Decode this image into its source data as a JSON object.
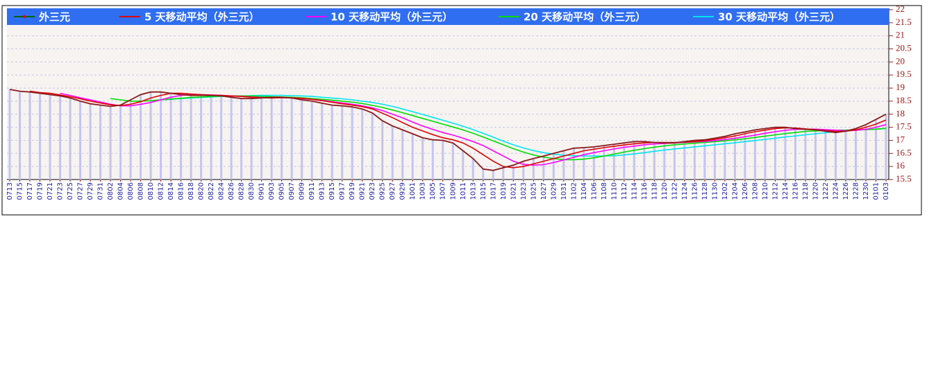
{
  "chart_data": {
    "type": "line",
    "categories": [
      "0713",
      "0715",
      "0717",
      "0719",
      "0721",
      "0723",
      "0725",
      "0727",
      "0729",
      "0731",
      "0802",
      "0804",
      "0806",
      "0808",
      "0810",
      "0812",
      "0814",
      "0816",
      "0818",
      "0820",
      "0822",
      "0824",
      "0826",
      "0828",
      "0830",
      "0901",
      "0903",
      "0905",
      "0907",
      "0909",
      "0911",
      "0913",
      "0915",
      "0917",
      "0919",
      "0921",
      "0923",
      "0925",
      "0927",
      "0929",
      "1001",
      "1003",
      "1005",
      "1007",
      "1009",
      "1011",
      "1013",
      "1015",
      "1017",
      "1019",
      "1021",
      "1023",
      "1025",
      "1027",
      "1029",
      "1031",
      "1102",
      "1104",
      "1106",
      "1108",
      "1110",
      "1112",
      "1114",
      "1116",
      "1118",
      "1120",
      "1122",
      "1124",
      "1126",
      "1128",
      "1130",
      "1202",
      "1204",
      "1206",
      "1208",
      "1210",
      "1212",
      "1214",
      "1216",
      "1218",
      "1220",
      "1222",
      "1224",
      "1226",
      "1228",
      "1230",
      "0101",
      "0103"
    ],
    "series": [
      {
        "name": "外三元",
        "color": "#8b1a1a",
        "values": [
          18.95,
          18.88,
          18.85,
          18.8,
          18.75,
          18.7,
          18.62,
          18.5,
          18.4,
          18.35,
          18.3,
          18.35,
          18.55,
          18.75,
          18.85,
          18.85,
          18.8,
          18.75,
          18.72,
          18.72,
          18.72,
          18.7,
          18.65,
          18.6,
          18.6,
          18.62,
          18.65,
          18.65,
          18.62,
          18.55,
          18.5,
          18.42,
          18.35,
          18.32,
          18.28,
          18.2,
          18.05,
          17.75,
          17.55,
          17.4,
          17.25,
          17.1,
          17.02,
          17.0,
          16.9,
          16.6,
          16.3,
          15.9,
          15.85,
          15.95,
          16.05,
          16.2,
          16.3,
          16.4,
          16.5,
          16.6,
          16.7,
          16.72,
          16.75,
          16.8,
          16.85,
          16.9,
          16.95,
          16.95,
          16.92,
          16.9,
          16.9,
          16.95,
          17.0,
          17.02,
          17.08,
          17.15,
          17.25,
          17.32,
          17.4,
          17.45,
          17.5,
          17.5,
          17.45,
          17.42,
          17.4,
          17.35,
          17.3,
          17.35,
          17.45,
          17.6,
          17.8,
          18.0
        ]
      },
      {
        "name": "5 天移动平均（外三元）",
        "color": "#e00000",
        "values": [
          null,
          null,
          18.88,
          18.83,
          18.8,
          18.74,
          18.67,
          18.59,
          18.5,
          18.43,
          18.36,
          18.33,
          18.38,
          18.48,
          18.62,
          18.72,
          18.8,
          18.8,
          18.77,
          18.75,
          18.73,
          18.72,
          18.7,
          18.68,
          18.65,
          18.63,
          18.62,
          18.63,
          18.63,
          18.61,
          18.57,
          18.52,
          18.46,
          18.4,
          18.35,
          18.29,
          18.2,
          18.04,
          17.87,
          17.68,
          17.5,
          17.36,
          17.22,
          17.1,
          17.02,
          16.9,
          16.7,
          16.45,
          16.2,
          16.0,
          15.95,
          16.0,
          16.1,
          16.2,
          16.3,
          16.4,
          16.5,
          16.6,
          16.66,
          16.72,
          16.77,
          16.82,
          16.87,
          16.9,
          16.92,
          16.92,
          16.92,
          16.93,
          16.95,
          16.99,
          17.04,
          17.1,
          17.17,
          17.25,
          17.33,
          17.39,
          17.45,
          17.48,
          17.47,
          17.44,
          17.41,
          17.37,
          17.34,
          17.35,
          17.4,
          17.5,
          17.62,
          17.78
        ]
      },
      {
        "name": "10 天移动平均（外三元）",
        "color": "#ff00ff",
        "values": [
          null,
          null,
          null,
          null,
          null,
          18.8,
          18.72,
          18.63,
          18.55,
          18.47,
          18.38,
          18.32,
          18.32,
          18.38,
          18.45,
          18.55,
          18.65,
          18.72,
          18.75,
          18.75,
          18.74,
          18.72,
          18.7,
          18.68,
          18.66,
          18.64,
          18.63,
          18.63,
          18.62,
          18.6,
          18.57,
          18.53,
          18.48,
          18.43,
          18.38,
          18.32,
          18.24,
          18.14,
          18.0,
          17.86,
          17.7,
          17.55,
          17.42,
          17.3,
          17.2,
          17.08,
          16.95,
          16.8,
          16.6,
          16.4,
          16.2,
          16.08,
          16.05,
          16.07,
          16.15,
          16.25,
          16.35,
          16.45,
          16.53,
          16.6,
          16.67,
          16.73,
          16.78,
          16.83,
          16.86,
          16.88,
          16.9,
          16.92,
          16.94,
          16.96,
          16.99,
          17.03,
          17.08,
          17.14,
          17.2,
          17.27,
          17.33,
          17.38,
          17.42,
          17.43,
          17.43,
          17.41,
          17.39,
          17.37,
          17.38,
          17.42,
          17.5,
          17.6
        ]
      },
      {
        "name": "20 天移动平均（外三元）",
        "color": "#00dd00",
        "values": [
          null,
          null,
          null,
          null,
          null,
          null,
          null,
          null,
          null,
          null,
          18.6,
          18.55,
          18.5,
          18.5,
          18.52,
          18.55,
          18.58,
          18.61,
          18.64,
          18.66,
          18.68,
          18.69,
          18.7,
          18.7,
          18.7,
          18.68,
          18.67,
          18.66,
          18.65,
          18.63,
          18.6,
          18.57,
          18.54,
          18.5,
          18.46,
          18.41,
          18.34,
          18.26,
          18.16,
          18.06,
          17.95,
          17.84,
          17.73,
          17.62,
          17.51,
          17.4,
          17.27,
          17.13,
          16.98,
          16.83,
          16.68,
          16.55,
          16.44,
          16.36,
          16.3,
          16.26,
          16.26,
          16.28,
          16.33,
          16.4,
          16.47,
          16.55,
          16.62,
          16.68,
          16.74,
          16.79,
          16.83,
          16.86,
          16.89,
          16.92,
          16.95,
          16.98,
          17.02,
          17.06,
          17.11,
          17.16,
          17.21,
          17.26,
          17.3,
          17.34,
          17.36,
          17.38,
          17.39,
          17.39,
          17.4,
          17.41,
          17.43,
          17.46
        ]
      },
      {
        "name": "30 天移动平均（外三元）",
        "color": "#00e5ee",
        "values": [
          null,
          null,
          null,
          null,
          null,
          null,
          null,
          null,
          null,
          null,
          null,
          null,
          null,
          null,
          null,
          18.55,
          18.57,
          18.6,
          18.62,
          18.64,
          18.66,
          18.68,
          18.69,
          18.7,
          18.71,
          18.72,
          18.72,
          18.72,
          18.71,
          18.7,
          18.68,
          18.65,
          18.62,
          18.59,
          18.55,
          18.5,
          18.45,
          18.38,
          18.3,
          18.2,
          18.1,
          17.99,
          17.88,
          17.77,
          17.66,
          17.54,
          17.41,
          17.27,
          17.12,
          16.97,
          16.83,
          16.71,
          16.61,
          16.53,
          16.47,
          16.43,
          16.41,
          16.4,
          16.4,
          16.4,
          16.41,
          16.44,
          16.48,
          16.53,
          16.58,
          16.63,
          16.67,
          16.71,
          16.75,
          16.79,
          16.83,
          16.87,
          16.91,
          16.95,
          16.99,
          17.04,
          17.08,
          17.13,
          17.17,
          17.21,
          17.25,
          17.29,
          17.33,
          17.36,
          17.39,
          17.41,
          17.43,
          17.45
        ]
      }
    ],
    "bar_color": "#c4c4f0",
    "legend_color": "#2f6ef0",
    "ylim": [
      15.5,
      22
    ],
    "yticks": [
      15.5,
      16,
      16.5,
      17,
      17.5,
      18,
      18.5,
      19,
      19.5,
      20,
      20.5,
      21,
      21.5,
      22
    ],
    "grid": true
  }
}
